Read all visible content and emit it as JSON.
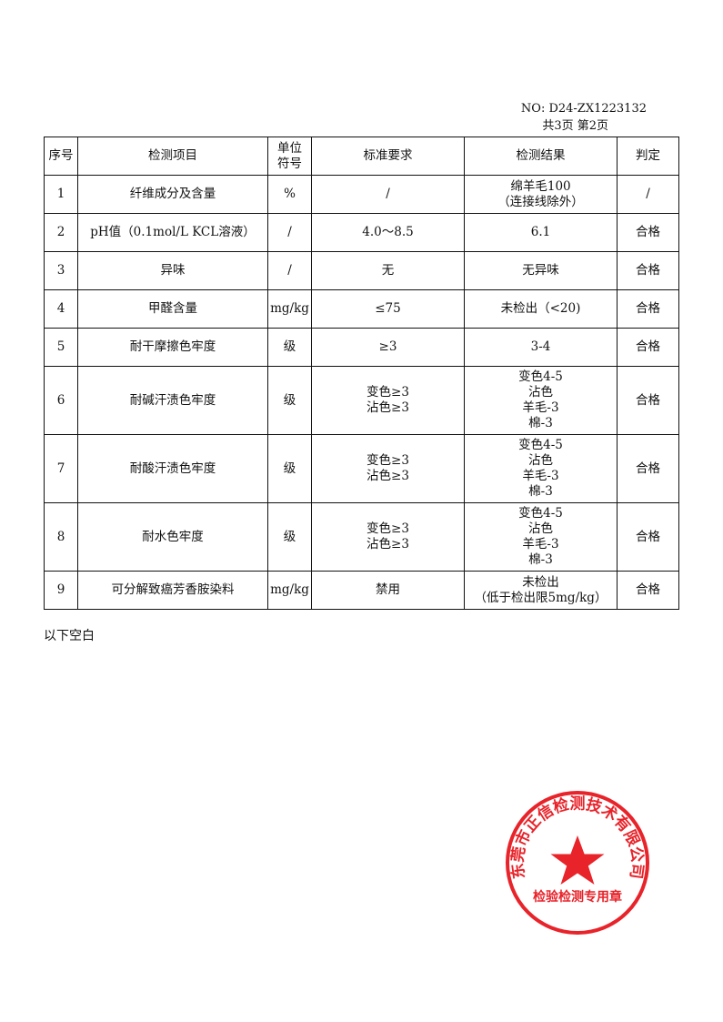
{
  "report_no": "NO: D24-ZX1223132",
  "page_info": "共3页 第2页",
  "table": {
    "headers": [
      "序号",
      "检测项目",
      [
        "单位",
        "符号"
      ],
      "标准要求",
      "检测结果",
      "判定"
    ],
    "rows": [
      {
        "no": "1",
        "item": "纤维成分及含量",
        "unit": "%",
        "standard": [
          "/"
        ],
        "result": [
          "绵羊毛100",
          "（连接线除外）"
        ],
        "verdict": "/"
      },
      {
        "no": "2",
        "item": "pH值（0.1mol/L KCL溶液）",
        "unit": "/",
        "standard": [
          "4.0～8.5"
        ],
        "result": [
          "6.1"
        ],
        "verdict": "合格"
      },
      {
        "no": "3",
        "item": "异味",
        "unit": "/",
        "standard": [
          "无"
        ],
        "result": [
          "无异味"
        ],
        "verdict": "合格"
      },
      {
        "no": "4",
        "item": "甲醛含量",
        "unit": "mg/kg",
        "standard": [
          "≤75"
        ],
        "result": [
          "未检出（<20)"
        ],
        "verdict": "合格"
      },
      {
        "no": "5",
        "item": "耐干摩擦色牢度",
        "unit": "级",
        "standard": [
          "≥3"
        ],
        "result": [
          "3-4"
        ],
        "verdict": "合格"
      },
      {
        "no": "6",
        "item": "耐碱汗渍色牢度",
        "unit": "级",
        "standard": [
          "变色≥3",
          "沾色≥3"
        ],
        "result": [
          "变色4-5",
          "沾色",
          "羊毛-3",
          "棉-3"
        ],
        "verdict": "合格"
      },
      {
        "no": "7",
        "item": "耐酸汗渍色牢度",
        "unit": "级",
        "standard": [
          "变色≥3",
          "沾色≥3"
        ],
        "result": [
          "变色4-5",
          "沾色",
          "羊毛-3",
          "棉-3"
        ],
        "verdict": "合格"
      },
      {
        "no": "8",
        "item": "耐水色牢度",
        "unit": "级",
        "standard": [
          "变色≥3",
          "沾色≥3"
        ],
        "result": [
          "变色4-5",
          "沾色",
          "羊毛-3",
          "棉-3"
        ],
        "verdict": "合格"
      },
      {
        "no": "9",
        "item": "可分解致癌芳香胺染料",
        "unit": "mg/kg",
        "standard": [
          "禁用"
        ],
        "result": [
          "未检出",
          "（低于检出限5mg/kg）"
        ],
        "verdict": "合格"
      }
    ]
  },
  "footer_note": "以下空白",
  "stamp": {
    "company": "东莞市正信检测技术有限公司",
    "purpose": "检验检测专用章",
    "color": "#e8232a"
  }
}
